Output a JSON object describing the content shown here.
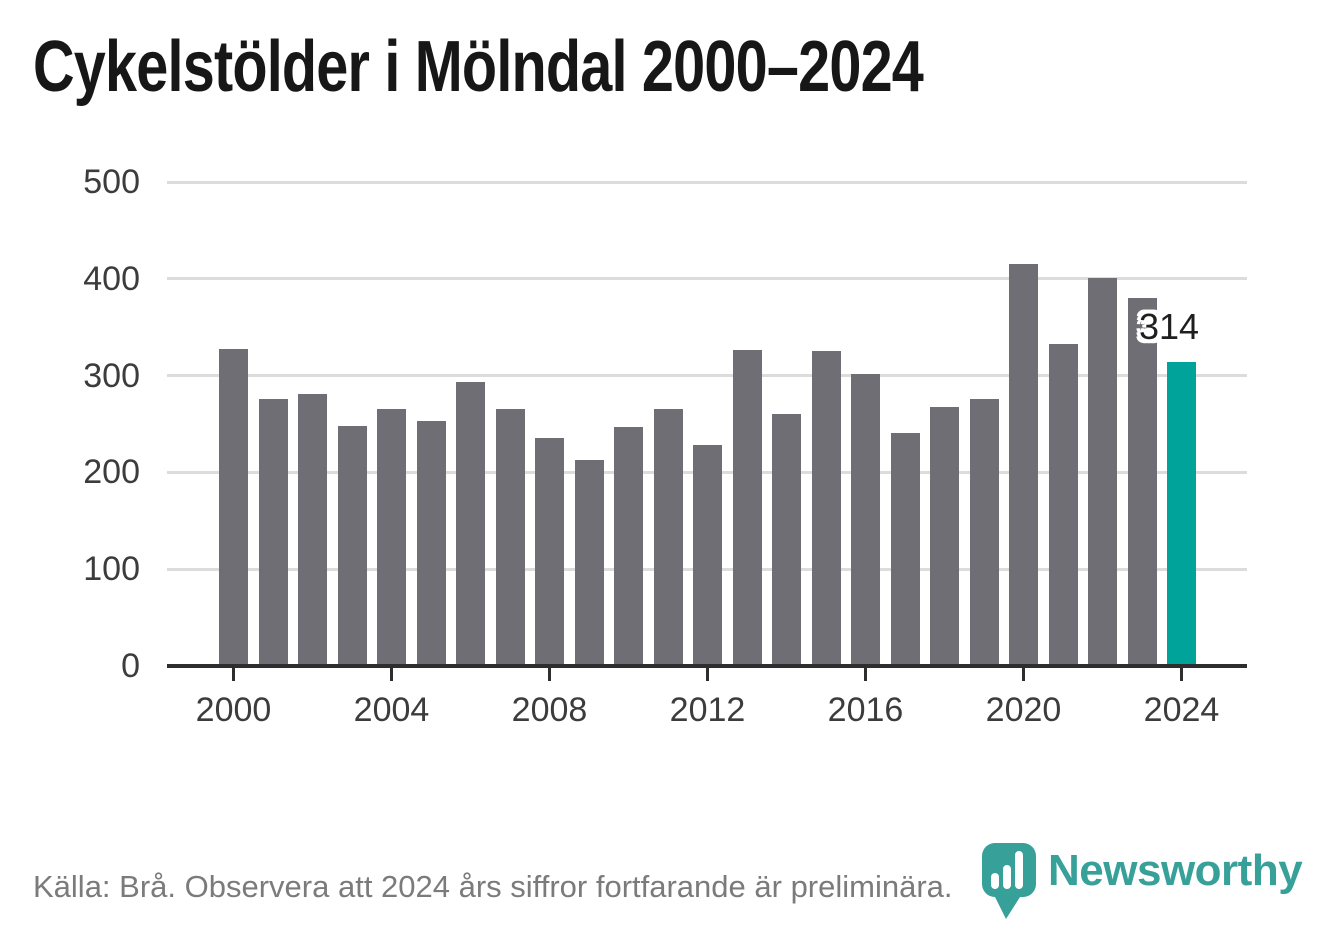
{
  "title": "Cykelstölder i Mölndal 2000–2024",
  "footer": "Källa: Brå. Observera att 2024 års siffror fortfarande är preliminära.",
  "annotation": {
    "label": "314"
  },
  "logo": {
    "wordmark": "Newsworthy",
    "icon": "newsworthy-pin-barchart-icon"
  },
  "colors": {
    "background": "#ffffff",
    "title_text": "#171717",
    "bar": "#6f6e74",
    "bar_highlight": "#00a39a",
    "gridline": "#dcdcdc",
    "axis_line": "#2e2e2e",
    "tick_text": "#3c3c3c",
    "annotation_text": "#1f1f1f",
    "footer_text": "#7b7b7b",
    "logo_teal": "#37a099"
  },
  "chart_data": {
    "type": "bar",
    "title": "Cykelstölder i Mölndal 2000–2024",
    "xlabel": "",
    "ylabel": "",
    "x": [
      2000,
      2001,
      2002,
      2003,
      2004,
      2005,
      2006,
      2007,
      2008,
      2009,
      2010,
      2011,
      2012,
      2013,
      2014,
      2015,
      2016,
      2017,
      2018,
      2019,
      2020,
      2021,
      2022,
      2023,
      2024
    ],
    "values": [
      328,
      276,
      281,
      248,
      266,
      253,
      293,
      266,
      236,
      213,
      247,
      266,
      228,
      326,
      260,
      325,
      302,
      241,
      268,
      276,
      415,
      333,
      401,
      380,
      314
    ],
    "highlight_x": 2024,
    "highlight_value_label": "314",
    "ylim": [
      0,
      500
    ],
    "yticks": [
      0,
      100,
      200,
      300,
      400,
      500
    ],
    "xticks": [
      2000,
      2004,
      2008,
      2012,
      2016,
      2020,
      2024
    ],
    "grid": "horizontal-behind-bars",
    "legend": "none",
    "source_note": "Källa: Brå. Observera att 2024 års siffror fortfarande är preliminära."
  }
}
